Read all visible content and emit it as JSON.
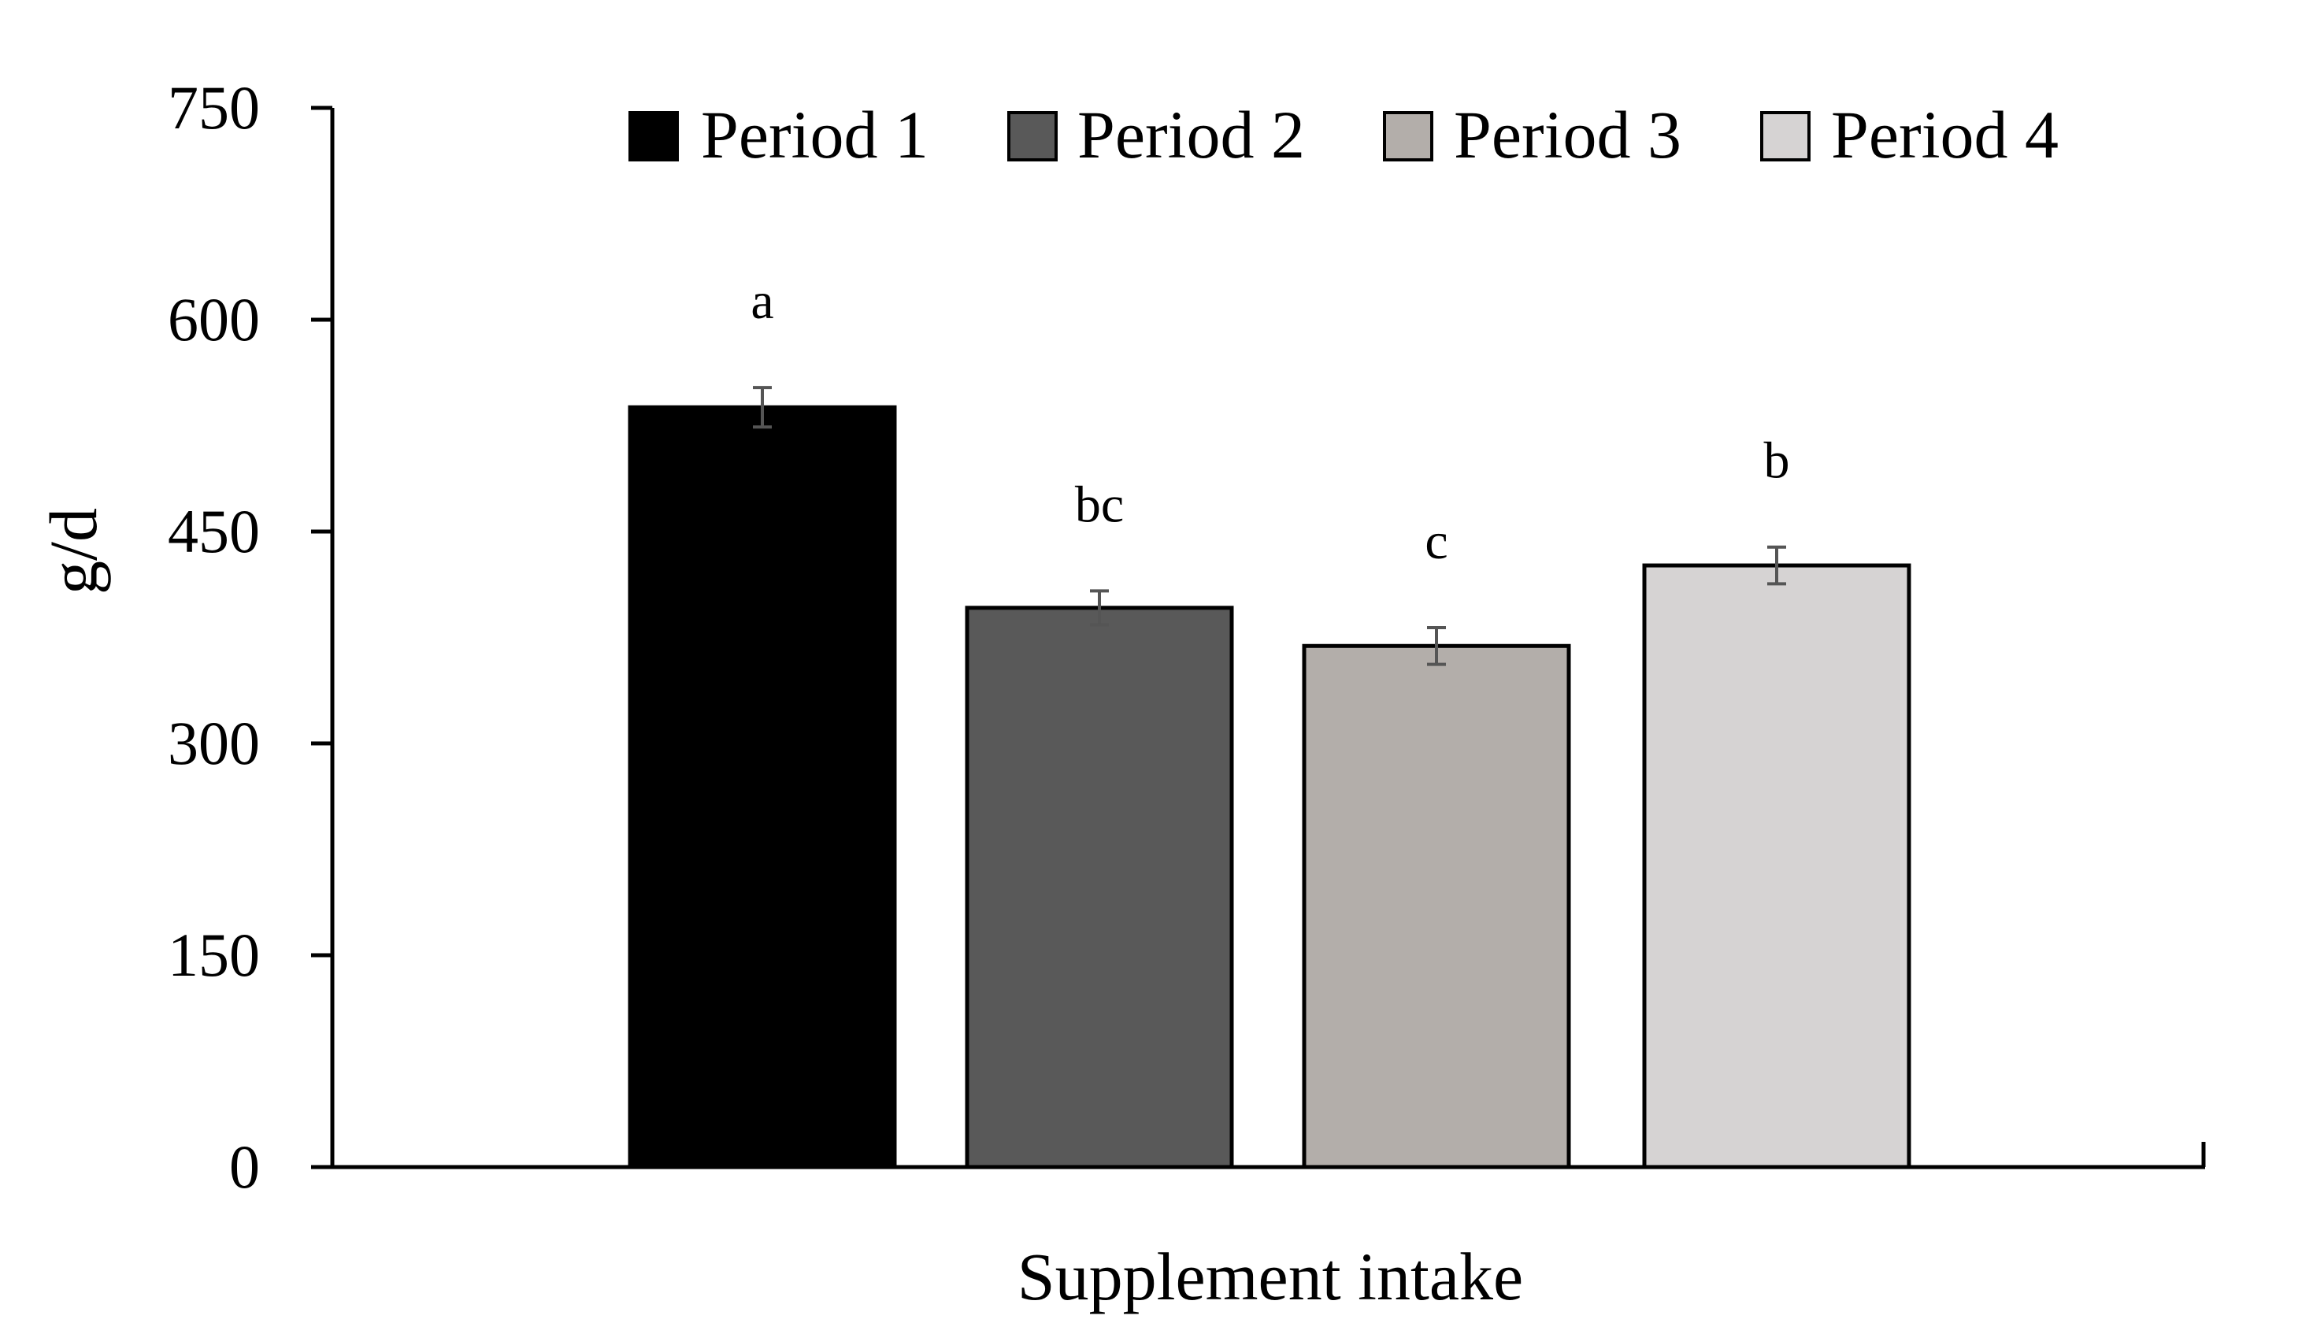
{
  "chart_data": {
    "type": "bar",
    "title": "",
    "xlabel": "Supplement intake",
    "ylabel": "g/d",
    "ylim": [
      0,
      750
    ],
    "yticks": [
      "0",
      "150",
      "300",
      "450",
      "600",
      "750"
    ],
    "categories": [
      "Supplement intake"
    ],
    "grid": false,
    "legend_position": "top",
    "series": [
      {
        "name": "Period 1",
        "values": [
          538
        ],
        "error": [
          14
        ],
        "label": "a",
        "color": "#000000"
      },
      {
        "name": "Period 2",
        "values": [
          396
        ],
        "error": [
          12
        ],
        "label": "bc",
        "color": "#595959"
      },
      {
        "name": "Period 3",
        "values": [
          369
        ],
        "error": [
          13
        ],
        "label": "c",
        "color": "#b3aeaa"
      },
      {
        "name": "Period 4",
        "values": [
          426
        ],
        "error": [
          13
        ],
        "label": "b",
        "color": "#d6d3d3"
      }
    ]
  }
}
